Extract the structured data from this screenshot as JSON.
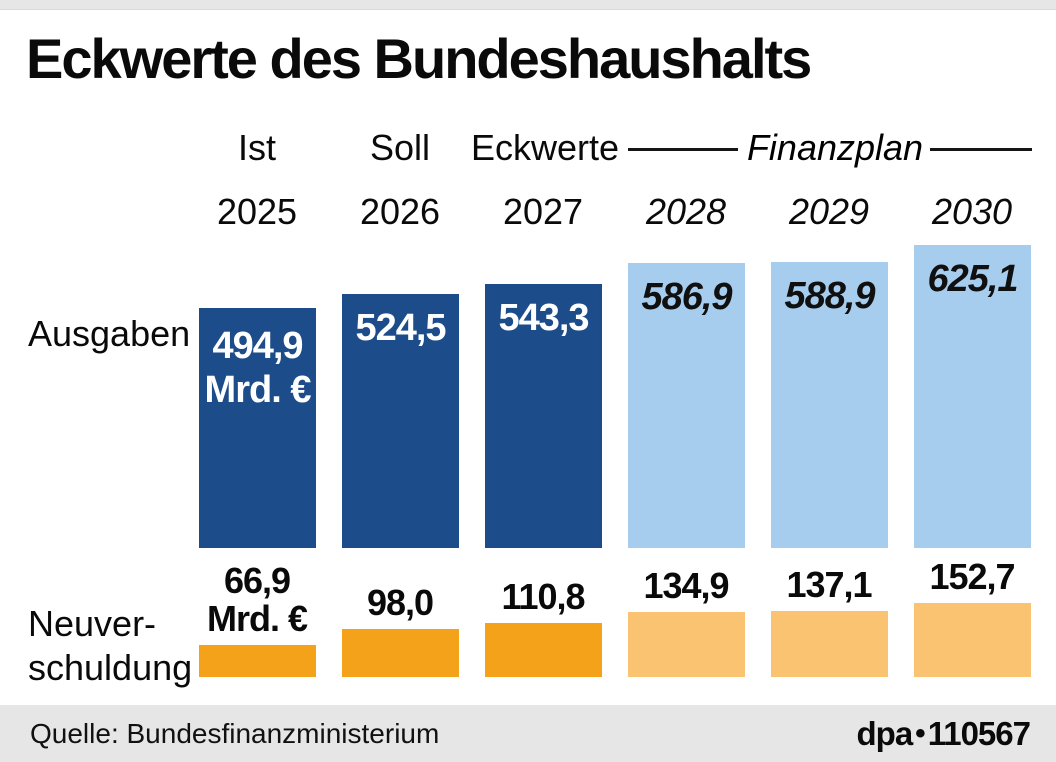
{
  "title": "Eckwerte des Bundeshaushalts",
  "header": {
    "period_labels": [
      "Ist",
      "Soll",
      "Eckwerte"
    ],
    "finanzplan_label": "Finanzplan",
    "years": [
      "2025",
      "2026",
      "2027",
      "2028",
      "2029",
      "2030"
    ]
  },
  "row_labels": {
    "ausgaben": "Ausgaben",
    "neuverschuldung_line1": "Neuver-",
    "neuverschuldung_line2": "schuldung"
  },
  "unit_label": "Mrd. €",
  "chart_data": {
    "type": "bar",
    "title": "Eckwerte des Bundeshaushalts",
    "unit": "Mrd. €",
    "categories": [
      "2025",
      "2026",
      "2027",
      "2028",
      "2029",
      "2030"
    ],
    "category_types": [
      "Ist",
      "Soll",
      "Eckwerte",
      "Finanzplan",
      "Finanzplan",
      "Finanzplan"
    ],
    "series": [
      {
        "name": "Ausgaben",
        "values": [
          494.9,
          524.5,
          543.3,
          586.9,
          588.9,
          625.1
        ],
        "display": [
          "494,9",
          "524,5",
          "543,3",
          "586,9",
          "588,9",
          "625,1"
        ]
      },
      {
        "name": "Neuverschuldung",
        "values": [
          66.9,
          98.0,
          110.8,
          134.9,
          137.1,
          152.7
        ],
        "display": [
          "66,9",
          "98,0",
          "110,8",
          "134,9",
          "137,1",
          "152,7"
        ]
      }
    ],
    "legend_position": "row-labels-left",
    "grid": false,
    "colors": {
      "ausgaben_actual": "#1c4c8a",
      "ausgaben_plan": "#a7cdee",
      "neuverschuldung_actual": "#f5a21b",
      "neuverschuldung_plan": "#f9c372"
    }
  },
  "footer": {
    "source": "Quelle: Bundesfinanzministerium",
    "credit": "dpa",
    "credit_separator": "•",
    "credit_number": "110567"
  }
}
